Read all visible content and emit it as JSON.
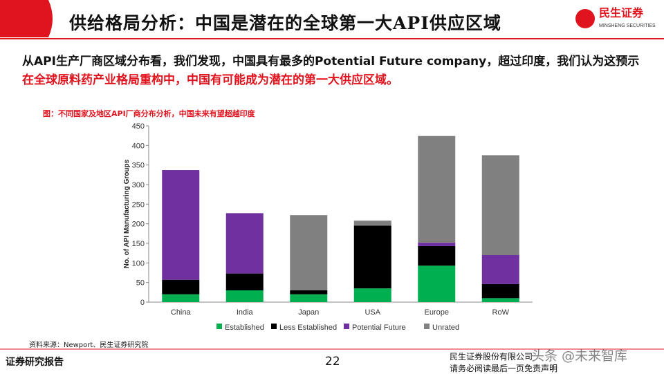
{
  "header": {
    "title": "供给格局分析：中国是潜在的全球第一大API供应区域",
    "logo": "民生证券",
    "logo_en": "MINSHENG SECURITIES"
  },
  "body": {
    "text_black": "从API生产厂商区域分布看，我们发现，中国具有最多的Potential Future company，超过印度，我们认为这预示",
    "text_red": "在全球原料药产业格局重构中，中国有可能成为潜在的第一大供应区域。"
  },
  "chart_data": {
    "type": "bar",
    "stacked": true,
    "caption": "图：不同国家及地区API厂商分布分析，中国未来有望超越印度",
    "y_label": "No. of API Manufacturing Groups",
    "categories": [
      "China",
      "India",
      "Japan",
      "USA",
      "Europe",
      "RoW"
    ],
    "series": [
      {
        "name": "Established",
        "color": "#00b050",
        "values": [
          20,
          30,
          20,
          35,
          93,
          10
        ]
      },
      {
        "name": "Less Established",
        "color": "#000000",
        "values": [
          37,
          43,
          10,
          160,
          50,
          36
        ]
      },
      {
        "name": "Potential Future",
        "color": "#7030a0",
        "values": [
          280,
          154,
          0,
          0,
          9,
          74
        ]
      },
      {
        "name": "Unrated",
        "color": "#808080",
        "values": [
          0,
          0,
          192,
          13,
          272,
          255
        ]
      }
    ],
    "ylim": [
      0,
      450
    ],
    "yticks": [
      0,
      50,
      100,
      150,
      200,
      250,
      300,
      350,
      400,
      450
    ],
    "grid": false,
    "legend": "bottom"
  },
  "source": "资料来源：Newport、民生证券研究院",
  "footer": {
    "left": "证券研究报告",
    "page": "22",
    "right_1": "民生证券股份有限公司",
    "right_2": "请务必阅读最后一页免责声明",
    "watermark": "头条 @未来智库"
  }
}
